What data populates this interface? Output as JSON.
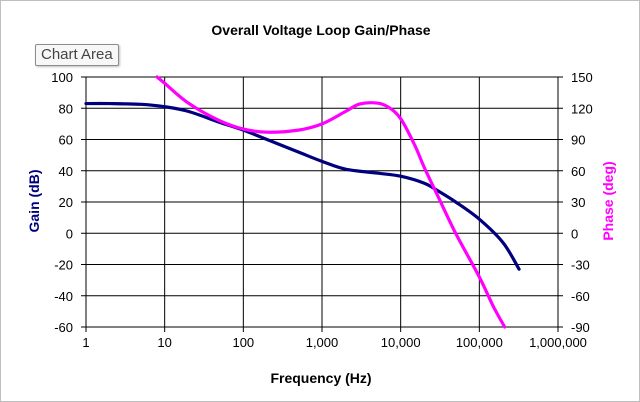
{
  "chart_data": {
    "type": "line",
    "title": "Overall Voltage Loop Gain/Phase",
    "xlabel": "Frequency (Hz)",
    "ylabel": "Gain (dB)",
    "y2label": "Phase (deg)",
    "xscale": "log",
    "xlim": [
      1,
      1000000
    ],
    "ylim": [
      -60,
      100
    ],
    "y2lim": [
      -90,
      150
    ],
    "xticks": [
      "1",
      "10",
      "100",
      "1,000",
      "10,000",
      "100,000",
      "1,000,000"
    ],
    "yticks": [
      "100",
      "80",
      "60",
      "40",
      "20",
      "0",
      "-20",
      "-40",
      "-60"
    ],
    "y2ticks": [
      "150",
      "120",
      "90",
      "60",
      "30",
      "0",
      "-30",
      "-60",
      "-90"
    ],
    "grid": true,
    "series": [
      {
        "axis": "left",
        "color": "#00007f",
        "x": [
          1,
          2,
          5,
          10,
          20,
          50,
          100,
          200,
          500,
          1000,
          2000,
          5000,
          10000,
          20000,
          30000,
          50000,
          100000,
          200000,
          320000
        ],
        "values": [
          83,
          83,
          82.5,
          81,
          78,
          71,
          66,
          60,
          52,
          46,
          41,
          38.5,
          36.5,
          32,
          27,
          20,
          9,
          -6,
          -23
        ]
      },
      {
        "axis": "right",
        "color": "#ff00ff",
        "x": [
          8,
          10,
          20,
          50,
          100,
          200,
          500,
          1000,
          2000,
          3000,
          5000,
          7000,
          10000,
          15000,
          20000,
          30000,
          50000,
          100000,
          150000,
          210000
        ],
        "values": [
          150,
          144,
          125,
          108,
          100,
          97,
          99,
          105,
          117,
          124,
          125,
          121,
          110,
          85,
          63,
          35,
          0,
          -42,
          -70,
          -90
        ]
      }
    ]
  },
  "tooltip": "Chart Area"
}
